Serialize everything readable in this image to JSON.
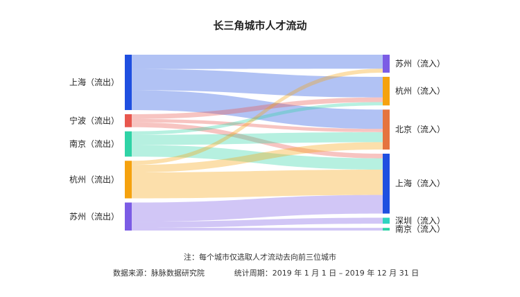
{
  "chart_data": {
    "type": "sankey",
    "title": "长三角城市人才流动",
    "sources": [
      {
        "id": "src_shanghai",
        "label": "上海（流出）",
        "color": "#1f4fe0"
      },
      {
        "id": "src_ningbo",
        "label": "宁波（流出）",
        "color": "#e8574e"
      },
      {
        "id": "src_nanjing",
        "label": "南京（流出）",
        "color": "#2fd3a6"
      },
      {
        "id": "src_hangzhou",
        "label": "杭州（流出）",
        "color": "#f5a20f"
      },
      {
        "id": "src_suzhou",
        "label": "苏州（流出）",
        "color": "#7b5ce5"
      }
    ],
    "targets": [
      {
        "id": "dst_suzhou",
        "label": "苏州（流入）",
        "color": "#7b5ce5"
      },
      {
        "id": "dst_hangzhou",
        "label": "杭州（流入）",
        "color": "#f5a20f"
      },
      {
        "id": "dst_beijing",
        "label": "北京（流入）",
        "color": "#e5743f"
      },
      {
        "id": "dst_shanghai",
        "label": "上海（流入）",
        "color": "#1f4fe0"
      },
      {
        "id": "dst_shenzhen",
        "label": "深圳（流入）",
        "color": "#2fd3c0"
      },
      {
        "id": "dst_nanjing",
        "label": "南京（流入）",
        "color": "#2fd3a6"
      }
    ],
    "flows": [
      {
        "source": "src_shanghai",
        "target": "dst_suzhou",
        "value": 21
      },
      {
        "source": "src_shanghai",
        "target": "dst_hangzhou",
        "value": 31
      },
      {
        "source": "src_shanghai",
        "target": "dst_beijing",
        "value": 29
      },
      {
        "source": "src_ningbo",
        "target": "dst_hangzhou",
        "value": 7
      },
      {
        "source": "src_ningbo",
        "target": "dst_beijing",
        "value": 5
      },
      {
        "source": "src_ningbo",
        "target": "dst_shanghai",
        "value": 7
      },
      {
        "source": "src_nanjing",
        "target": "dst_hangzhou",
        "value": 5
      },
      {
        "source": "src_nanjing",
        "target": "dst_beijing",
        "value": 15
      },
      {
        "source": "src_nanjing",
        "target": "dst_shanghai",
        "value": 17
      },
      {
        "source": "src_hangzhou",
        "target": "dst_suzhou",
        "value": 6
      },
      {
        "source": "src_hangzhou",
        "target": "dst_beijing",
        "value": 11
      },
      {
        "source": "src_hangzhou",
        "target": "dst_shanghai",
        "value": 38
      },
      {
        "source": "src_suzhou",
        "target": "dst_shanghai",
        "value": 28
      },
      {
        "source": "src_suzhou",
        "target": "dst_shenzhen",
        "value": 9
      },
      {
        "source": "src_suzhou",
        "target": "dst_nanjing",
        "value": 4
      }
    ]
  },
  "footer": {
    "note": "注：每个城市仅选取人才流动去向前三位城市",
    "source": "数据来源：脉脉数据研究院",
    "period": "统计周期：2019 年 1 月 1 日 – 2019 年 12 月 31 日"
  }
}
